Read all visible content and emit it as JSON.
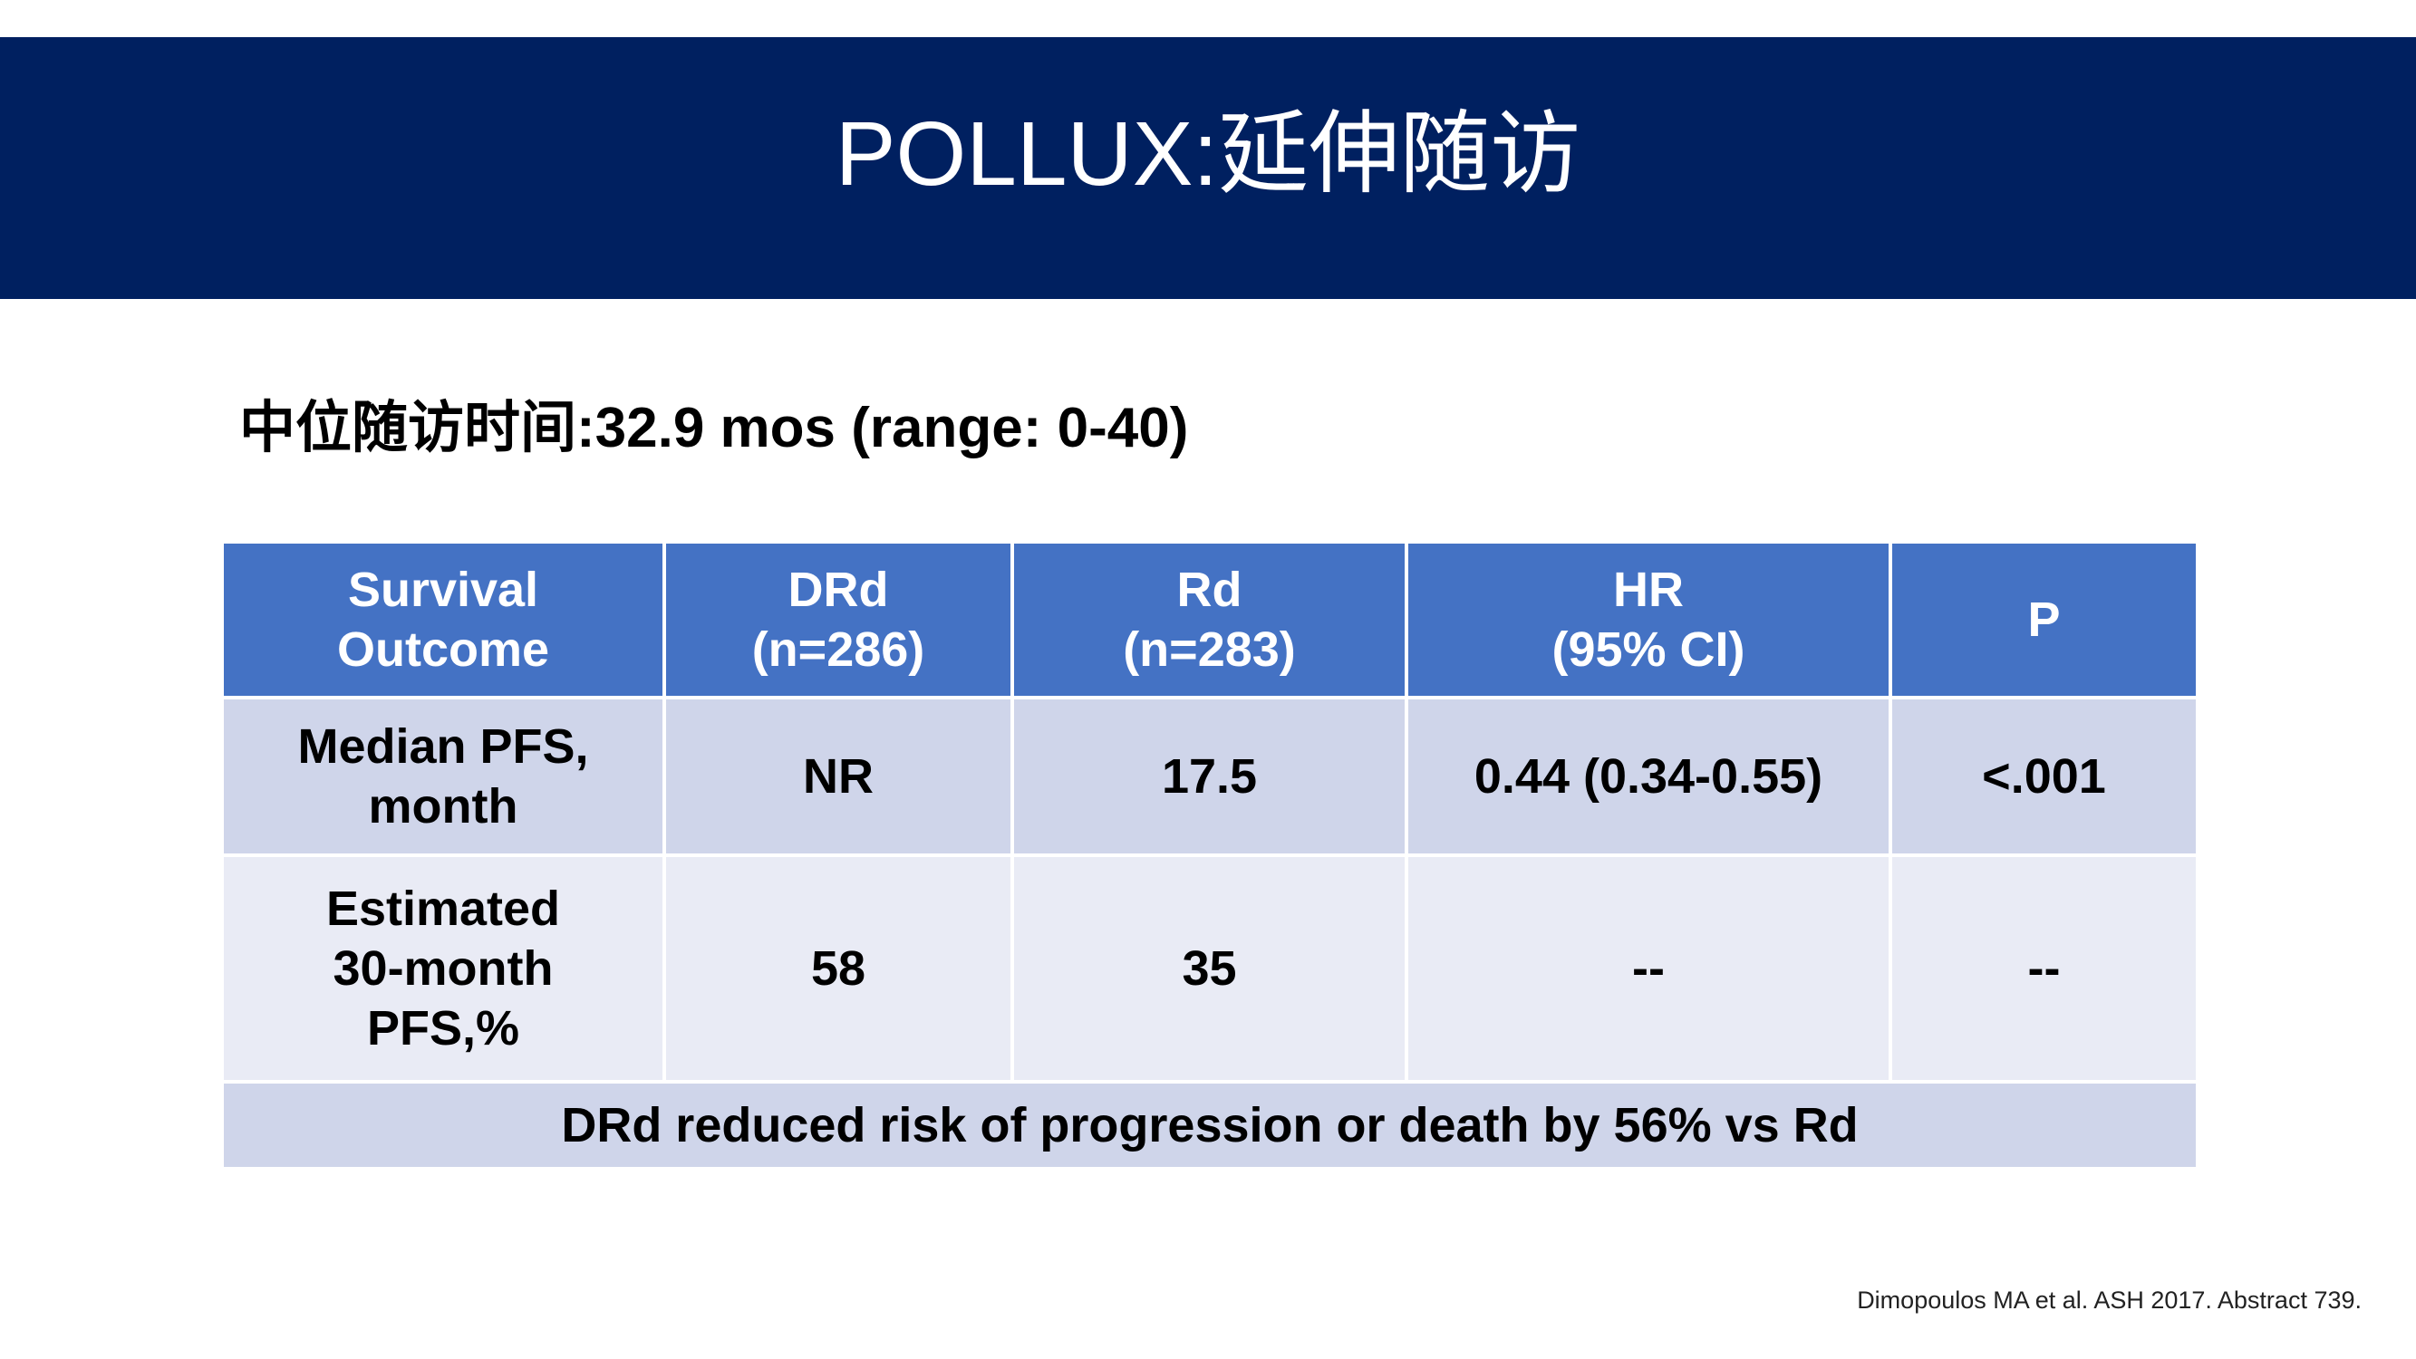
{
  "header": {
    "title": "POLLUX:延伸随访"
  },
  "subtitle": "中位随访时间:32.9 mos (range: 0-40)",
  "table": {
    "columns": [
      "Survival\nOutcome",
      "DRd\n(n=286)",
      "Rd\n(n=283)",
      "HR\n(95% CI)",
      "P"
    ],
    "rows": [
      [
        "Median PFS,\nmonth",
        "NR",
        "17.5",
        "0.44 (0.34-0.55)",
        "<.001"
      ],
      [
        "Estimated\n30-month\nPFS,%",
        "58",
        "35",
        "--",
        "--"
      ]
    ],
    "footer": "DRd reduced risk of progression or death by 56% vs Rd"
  },
  "citation": "Dimopoulos MA et al. ASH 2017. Abstract 739."
}
